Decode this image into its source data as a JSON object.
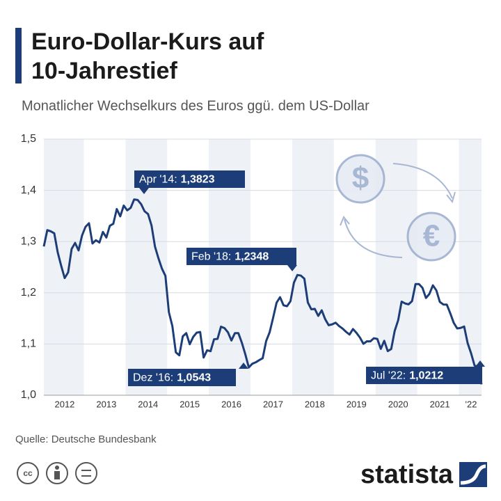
{
  "chart_data": {
    "type": "line",
    "title": [
      "Euro-Dollar-Kurs auf",
      "10-Jahrestief"
    ],
    "subtitle": "Monatlicher Wechselkurs des Euros ggü. dem US-Dollar",
    "categories": [
      null,
      null,
      null,
      null,
      null,
      null,
      "2012",
      null,
      null,
      null,
      null,
      null,
      null,
      null,
      null,
      null,
      null,
      null,
      "2013",
      null,
      null,
      null,
      null,
      null,
      null,
      null,
      null,
      null,
      null,
      null,
      "2014",
      null,
      null,
      null,
      null,
      null,
      null,
      null,
      null,
      null,
      null,
      null,
      "2015",
      null,
      null,
      null,
      null,
      null,
      null,
      null,
      null,
      null,
      null,
      null,
      "2016",
      null,
      null,
      null,
      null,
      null,
      null,
      null,
      null,
      null,
      null,
      null,
      "2017",
      null,
      null,
      null,
      null,
      null,
      null,
      null,
      null,
      null,
      null,
      null,
      "2018",
      null,
      null,
      null,
      null,
      null,
      null,
      null,
      null,
      null,
      null,
      null,
      "2019",
      null,
      null,
      null,
      null,
      null,
      null,
      null,
      null,
      null,
      null,
      null,
      "2020",
      null,
      null,
      null,
      null,
      null,
      null,
      null,
      null,
      null,
      null,
      null,
      "2021",
      null,
      null,
      null,
      null,
      null,
      null,
      null,
      null,
      "'22",
      null,
      null,
      null
    ],
    "series": [
      {
        "name": "Euro-Dollar-Kurs",
        "color": "#1c3d78",
        "values": [
          1.2905,
          1.3224,
          1.3201,
          1.3162,
          1.2789,
          1.2526,
          1.2288,
          1.24,
          1.2856,
          1.2974,
          1.2828,
          1.3119,
          1.3288,
          1.3359,
          1.2964,
          1.3026,
          1.2982,
          1.3189,
          1.308,
          1.331,
          1.3348,
          1.3635,
          1.3493,
          1.3704,
          1.361,
          1.3659,
          1.3823,
          1.3813,
          1.3732,
          1.3592,
          1.3539,
          1.3316,
          1.2901,
          1.2673,
          1.2472,
          1.2331,
          1.1621,
          1.135,
          1.0838,
          1.0779,
          1.115,
          1.1213,
          1.0996,
          1.1139,
          1.1221,
          1.1235,
          1.0736,
          1.0877,
          1.086,
          1.1093,
          1.11,
          1.1339,
          1.1311,
          1.1229,
          1.1069,
          1.1212,
          1.1212,
          1.1026,
          1.0799,
          1.0543,
          1.0614,
          1.0643,
          1.0685,
          1.0723,
          1.1058,
          1.1229,
          1.1511,
          1.1807,
          1.1915,
          1.1756,
          1.1738,
          1.1836,
          1.22,
          1.2348,
          1.2336,
          1.2276,
          1.1812,
          1.1678,
          1.1686,
          1.1549,
          1.1659,
          1.1484,
          1.1367,
          1.1384,
          1.1416,
          1.1351,
          1.1302,
          1.1238,
          1.1185,
          1.1293,
          1.1218,
          1.1126,
          1.1004,
          1.1053,
          1.1051,
          1.1113,
          1.11,
          1.0905,
          1.1063,
          1.0862,
          1.0902,
          1.1255,
          1.1463,
          1.1828,
          1.1792,
          1.1775,
          1.1838,
          1.217,
          1.2171,
          1.2098,
          1.1899,
          1.1979,
          1.2146,
          1.2047,
          1.1822,
          1.1772,
          1.177,
          1.1601,
          1.1414,
          1.1304,
          1.1314,
          1.1342,
          1.1019,
          1.0819,
          1.0579,
          1.0566,
          1.0212
        ]
      }
    ],
    "ylim": [
      1.0,
      1.5
    ],
    "yticks": [
      {
        "value": 1.0,
        "label": "1,0"
      },
      {
        "value": 1.1,
        "label": "1,1"
      },
      {
        "value": 1.2,
        "label": "1,2"
      },
      {
        "value": 1.3,
        "label": "1,3"
      },
      {
        "value": 1.4,
        "label": "1,4"
      },
      {
        "value": 1.5,
        "label": "1,5"
      }
    ],
    "grid": true,
    "annotations": [
      {
        "label": "Apr '14:",
        "value": "1,3823"
      },
      {
        "label": "Feb '18:",
        "value": "1,2348"
      },
      {
        "label": "Dez '16:",
        "value": "1,0543"
      },
      {
        "label": "Jul '22:",
        "value": "1,0212"
      }
    ],
    "source": "Quelle: Deutsche Bundesbank",
    "brand": "statista"
  }
}
